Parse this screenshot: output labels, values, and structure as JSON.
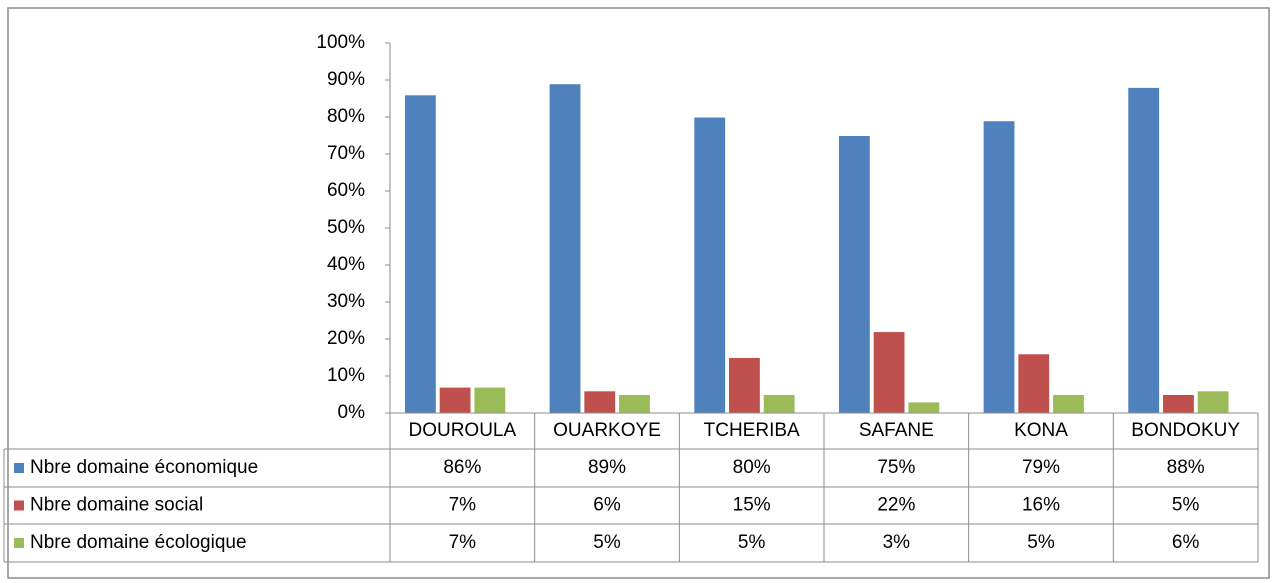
{
  "chart_data": {
    "type": "bar",
    "categories": [
      "DOUROULA",
      "OUARKOYE",
      "TCHERIBA",
      "SAFANE",
      "KONA",
      "BONDOKUY"
    ],
    "series": [
      {
        "name": "Nbre domaine économique",
        "color": "#4f81bd",
        "values": [
          86,
          89,
          80,
          75,
          79,
          88
        ],
        "value_labels": [
          "86%",
          "89%",
          "80%",
          "75%",
          "79%",
          "88%"
        ]
      },
      {
        "name": "Nbre domaine social",
        "color": "#c0504d",
        "values": [
          7,
          6,
          15,
          22,
          16,
          5
        ],
        "value_labels": [
          "7%",
          "6%",
          "15%",
          "22%",
          "16%",
          "5%"
        ]
      },
      {
        "name": "Nbre domaine écologique",
        "color": "#9bbb59",
        "values": [
          7,
          5,
          5,
          3,
          5,
          6
        ],
        "value_labels": [
          "7%",
          "5%",
          "5%",
          "3%",
          "5%",
          "6%"
        ]
      }
    ],
    "ylim": [
      0,
      100
    ],
    "yticks": [
      {
        "value": 0,
        "label": "0%"
      },
      {
        "value": 10,
        "label": "10%"
      },
      {
        "value": 20,
        "label": "20%"
      },
      {
        "value": 30,
        "label": "30%"
      },
      {
        "value": 40,
        "label": "40%"
      },
      {
        "value": 50,
        "label": "50%"
      },
      {
        "value": 60,
        "label": "60%"
      },
      {
        "value": 70,
        "label": "70%"
      },
      {
        "value": 80,
        "label": "80%"
      },
      {
        "value": 90,
        "label": "90%"
      },
      {
        "value": 100,
        "label": "100%"
      }
    ]
  }
}
